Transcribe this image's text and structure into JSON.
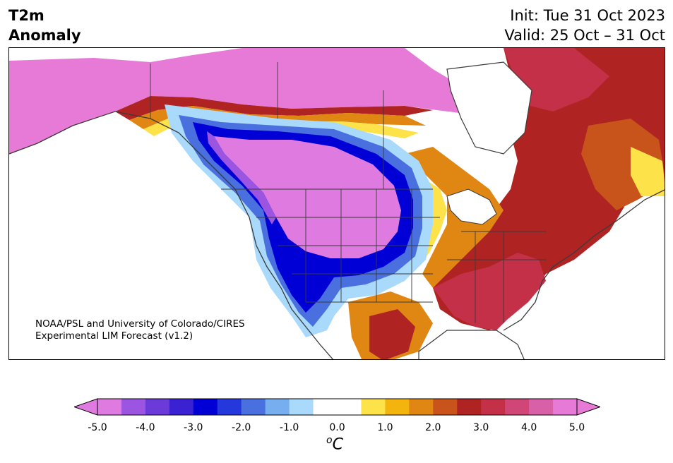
{
  "header": {
    "title_line1": "T2m",
    "title_line2": "Anomaly",
    "init_text": "Init: Tue 31 Oct 2023",
    "valid_text": "Valid: 25 Oct – 31 Oct"
  },
  "credit": {
    "line1": "NOAA/PSL and University of Colorado/CIRES",
    "line2": "Experimental LIM Forecast (v1.2)"
  },
  "colorbar": {
    "unit_base": "C",
    "unit_sup": "o",
    "tick_labels": [
      "-5.0",
      "-4.0",
      "-3.0",
      "-2.0",
      "-1.0",
      "0.0",
      "1.0",
      "2.0",
      "3.0",
      "4.0",
      "5.0"
    ],
    "colors": [
      "#df7be0",
      "#9b55e0",
      "#6b3ad9",
      "#3a22d3",
      "#0000d6",
      "#2438dc",
      "#4a70e0",
      "#76aef0",
      "#a9d9fb",
      "#ffffff",
      "#ffffff",
      "#fde24a",
      "#f2b40d",
      "#e08612",
      "#c8541b",
      "#b02323",
      "#c43048",
      "#d04676",
      "#d860a8",
      "#e77ad6"
    ],
    "extend_min_color": "#df7be0",
    "extend_max_color": "#e77ad6"
  },
  "map": {
    "region": "North America",
    "variable": "2m temperature anomaly",
    "ocean_color": "#ffffff",
    "border_color": "#3a3a3a"
  }
}
